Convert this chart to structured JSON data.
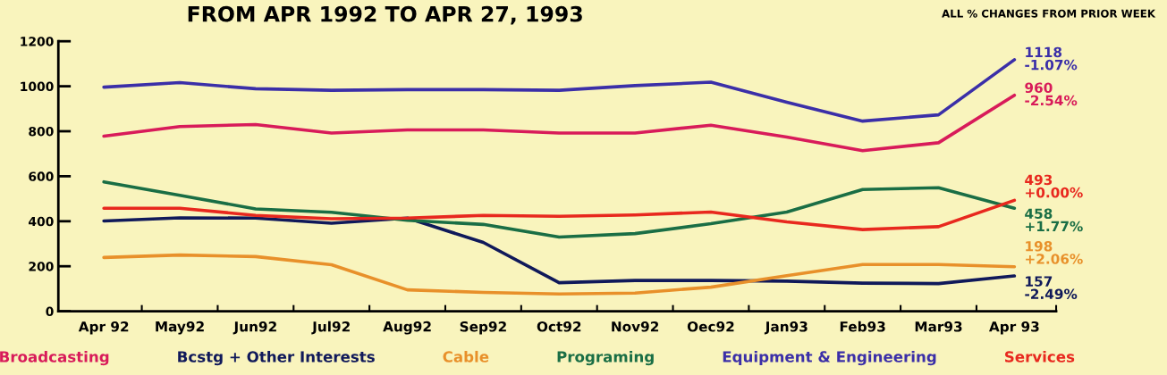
{
  "chart_data": {
    "type": "line",
    "title": "FROM APR 1992 TO APR 27, 1993",
    "subtitle": "ALL % CHANGES FROM PRIOR WEEK",
    "categories": [
      "Apr 92",
      "May92",
      "Jun92",
      "Jul92",
      "Aug92",
      "Sep92",
      "Oct92",
      "Nov92",
      "Oec92",
      "Jan93",
      "Feb93",
      "Mar93",
      "Apr 93"
    ],
    "series": [
      {
        "name": "Broadcasting",
        "color": "#d81b5a",
        "values": [
          778,
          821,
          830,
          792,
          806,
          806,
          792,
          792,
          827,
          774,
          714,
          749,
          960
        ],
        "value_labels": [
          null,
          null,
          null,
          null,
          null,
          null,
          null,
          null,
          null,
          null,
          null,
          null,
          "960\n-2.54%"
        ]
      },
      {
        "name": "Bcstg + Other Interests",
        "color": "#10195a",
        "values": [
          401,
          415,
          414,
          391,
          414,
          306,
          127,
          137,
          137,
          134,
          125,
          123,
          157
        ],
        "value_labels": [
          null,
          null,
          null,
          null,
          null,
          null,
          null,
          null,
          null,
          null,
          null,
          null,
          "157\n-2.49%"
        ]
      },
      {
        "name": "Cable",
        "color": "#e8902a",
        "values": [
          239,
          250,
          243,
          207,
          95,
          84,
          77,
          81,
          107,
          158,
          208,
          208,
          198
        ],
        "value_labels": [
          null,
          null,
          null,
          null,
          null,
          null,
          null,
          null,
          null,
          null,
          null,
          null,
          "198\n+2.06%"
        ]
      },
      {
        "name": "Programing",
        "color": "#1a6e45",
        "values": [
          575,
          515,
          455,
          440,
          404,
          386,
          330,
          345,
          389,
          441,
          541,
          549,
          458
        ],
        "value_labels": [
          null,
          null,
          null,
          null,
          null,
          null,
          null,
          null,
          null,
          null,
          null,
          null,
          "458\n+1.77%"
        ]
      },
      {
        "name": "Equipment & Engineering",
        "color": "#3b2fa8",
        "values": [
          996,
          1016,
          989,
          982,
          985,
          985,
          982,
          1003,
          1018,
          929,
          845,
          873,
          1118
        ],
        "value_labels": [
          null,
          null,
          null,
          null,
          null,
          null,
          null,
          null,
          null,
          null,
          null,
          null,
          "1118\n-1.07%"
        ]
      },
      {
        "name": "Services",
        "color": "#e8281e",
        "values": [
          458,
          458,
          426,
          411,
          414,
          426,
          422,
          428,
          441,
          397,
          363,
          376,
          493
        ],
        "value_labels": [
          null,
          null,
          null,
          null,
          null,
          null,
          null,
          null,
          null,
          null,
          null,
          null,
          "493\n+0.00%"
        ]
      }
    ],
    "ylim": [
      0,
      1200
    ],
    "yticks": [
      0,
      200,
      400,
      600,
      800,
      1000,
      1200
    ],
    "grid": false,
    "legend": "bottom",
    "marker": "none",
    "line_style": "solid"
  }
}
